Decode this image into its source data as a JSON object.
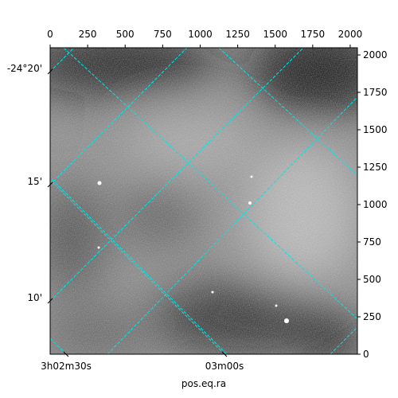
{
  "chart_data": {
    "type": "image",
    "xlabel": "pos.eq.ra",
    "xlim": [
      0,
      2048
    ],
    "ylim": [
      0,
      2048
    ],
    "xticks": [
      0,
      250,
      500,
      750,
      1000,
      1250,
      1500,
      1750,
      2000
    ],
    "yticks": [
      0,
      250,
      500,
      750,
      1000,
      1250,
      1500,
      1750,
      2000
    ],
    "dec_ticks": [
      {
        "value": -24.3333,
        "label": "-24°20'"
      },
      {
        "value": -24.25,
        "label": "15'"
      },
      {
        "value": -24.1667,
        "label": "10'"
      }
    ],
    "ra_ticks": [
      {
        "value": 45.625,
        "label": "3h02m30s"
      },
      {
        "value": 45.75,
        "label": "03m00s"
      }
    ],
    "grid_color": "#00e5e5"
  }
}
